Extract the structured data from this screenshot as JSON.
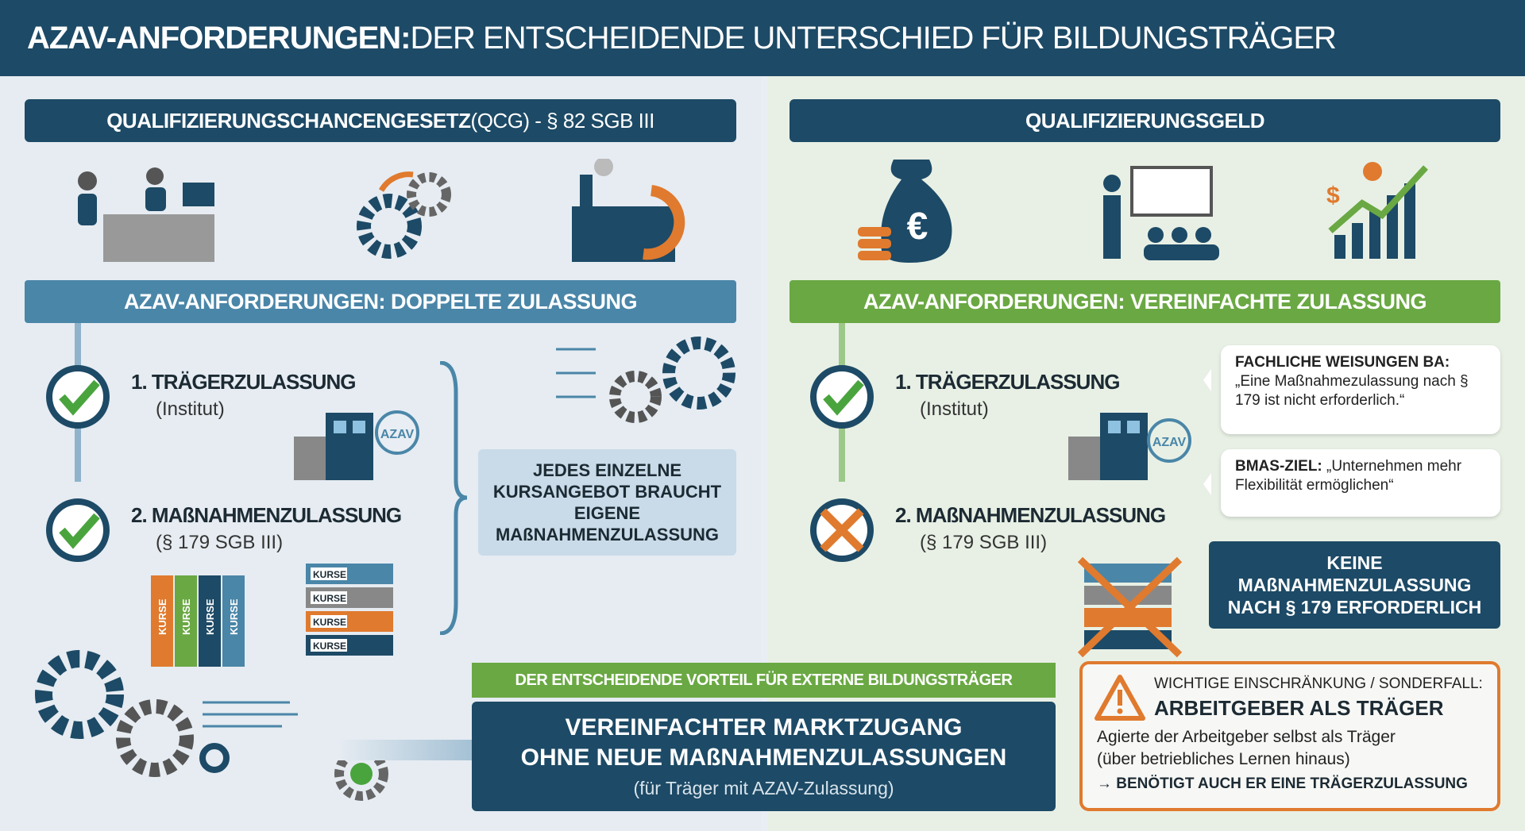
{
  "title": {
    "bold": "AZAV-ANFORDERUNGEN:",
    "rest": " DER ENTSCHEIDENDE UNTERSCHIED FÜR BILDUNGSTRÄGER"
  },
  "left": {
    "header": {
      "bold": "QUALIFIZIERUNGSCHANCENGESETZ",
      "rest": " (QCG) - § 82 SGB III"
    },
    "band": "AZAV-ANFORDERUNGEN: DOPPELTE ZULASSUNG",
    "items": [
      {
        "title": "1. TRÄGERZULASSUNG",
        "sub": "(Institut)",
        "status": "check"
      },
      {
        "title": "2. MAßNAHMENZULASSUNG",
        "sub": "(§ 179 SGB III)",
        "status": "check"
      }
    ],
    "note": "JEDES EINZELNE KURSANGEBOT BRAUCHT EIGENE MAßNAHMENZULASSUNG",
    "stamp": "AZAV",
    "binder": "KURSE"
  },
  "right": {
    "header": "QUALIFIZIERUNGSGELD",
    "band": "AZAV-ANFORDERUNGEN: VEREINFACHTE ZULASSUNG",
    "items": [
      {
        "title": "1. TRÄGERZULASSUNG",
        "sub": "(Institut)",
        "status": "check"
      },
      {
        "title": "2. MAßNAHMENZULASSUNG",
        "sub": "(§ 179 SGB III)",
        "status": "cross"
      }
    ],
    "bubble1": {
      "bold": "FACHLICHE WEISUNGEN BA:",
      "text": "„Eine Maßnahmezulassung nach § 179 ist nicht erforderlich.“"
    },
    "bubble2": {
      "bold": "BMAS-ZIEL:",
      "text": " „Unternehmen mehr Flexibilität ermöglichen“"
    },
    "keine": "KEINE MAßNAHMENZULASSUNG NACH § 179 ERFORDERLICH",
    "warning": {
      "label": "WICHTIGE EINSCHRÄNKUNG / SONDERFALL:",
      "title": "ARBEITGEBER ALS TRÄGER",
      "text1": "Agierte der Arbeitgeber selbst als Träger",
      "text2": "(über betriebliches Lernen hinaus)",
      "text3": "→ BENÖTIGT AUCH ER EINE TRÄGERZULASSUNG"
    }
  },
  "bottom": {
    "label": "DER ENTSCHEIDENDE VORTEIL FÜR EXTERNE BILDUNGSTRÄGER",
    "line1": "VEREINFACHTER MARKTZUGANG",
    "line2": "OHNE NEUE MAßNAHMENZULASSUNGEN",
    "sub": "(für Träger mit AZAV-Zulassung)"
  },
  "colors": {
    "navy": "#1d4a66",
    "blue": "#4a86a8",
    "green": "#6aa843",
    "orange": "#e07a2e"
  }
}
